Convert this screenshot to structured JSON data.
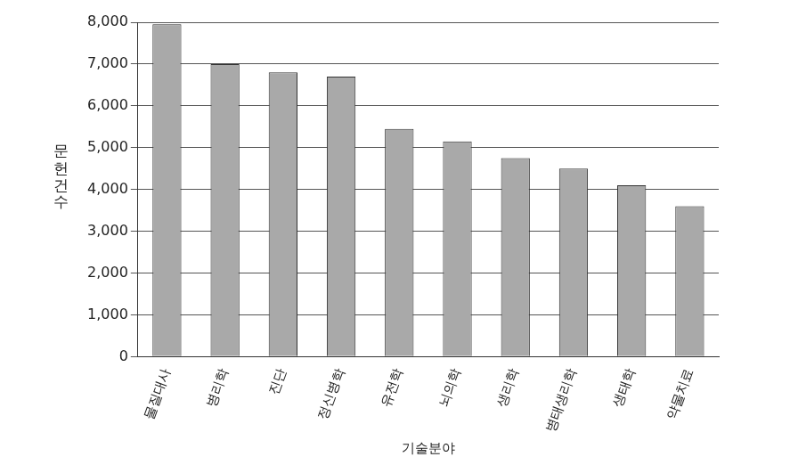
{
  "chart_data": {
    "type": "bar",
    "x_label": "기술분야",
    "y_label": "문헌건수",
    "categories": [
      "물질대사",
      "병리학",
      "진단",
      "정신병학",
      "유전학",
      "뇌의학",
      "생리학",
      "병태생리학",
      "생태학",
      "약물치료"
    ],
    "values": [
      7950,
      7000,
      6800,
      6700,
      5450,
      5150,
      4750,
      4500,
      4100,
      3600
    ],
    "color": "#a9a9a9",
    "ylim": [
      0,
      8000
    ],
    "yticks": [
      0,
      {
        "value": 1000,
        "label": "1,000"
      },
      {
        "value": 2000,
        "label": "2,000"
      },
      {
        "value": 3000,
        "label": "3,000"
      },
      {
        "value": 4000,
        "label": "4,000"
      },
      {
        "value": 5000,
        "label": "5,000"
      },
      {
        "value": 6000,
        "label": "6,000"
      },
      {
        "value": 7000,
        "label": "7,000"
      },
      {
        "value": 8000,
        "label": "8,000"
      }
    ],
    "grid": true
  }
}
